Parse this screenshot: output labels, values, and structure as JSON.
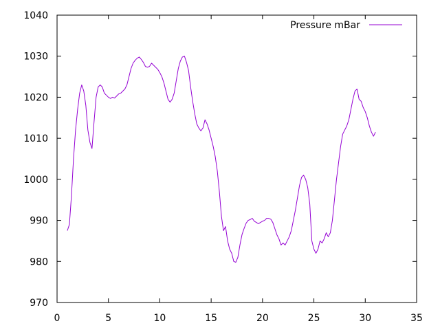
{
  "chart_data": {
    "type": "line",
    "title": "",
    "xlabel": "",
    "ylabel": "",
    "xlim": [
      0,
      35
    ],
    "ylim": [
      970,
      1040
    ],
    "x_ticks": [
      0,
      5,
      10,
      15,
      20,
      25,
      30,
      35
    ],
    "y_ticks": [
      970,
      980,
      990,
      1000,
      1010,
      1020,
      1030,
      1040
    ],
    "grid": false,
    "legend_position": "top-right",
    "series": [
      {
        "name": "Pressure mBar",
        "color": "#9400d3",
        "points": [
          [
            1.0,
            987.5
          ],
          [
            1.2,
            989.0
          ],
          [
            1.4,
            996.0
          ],
          [
            1.6,
            1005.0
          ],
          [
            1.8,
            1012.0
          ],
          [
            2.0,
            1017.0
          ],
          [
            2.2,
            1021.0
          ],
          [
            2.4,
            1023.0
          ],
          [
            2.6,
            1021.5
          ],
          [
            2.8,
            1018.0
          ],
          [
            3.0,
            1012.0
          ],
          [
            3.2,
            1009.0
          ],
          [
            3.4,
            1007.5
          ],
          [
            3.6,
            1014.0
          ],
          [
            3.8,
            1020.0
          ],
          [
            4.0,
            1022.5
          ],
          [
            4.2,
            1023.0
          ],
          [
            4.4,
            1022.5
          ],
          [
            4.6,
            1021.0
          ],
          [
            4.8,
            1020.5
          ],
          [
            5.0,
            1020.0
          ],
          [
            5.2,
            1019.7
          ],
          [
            5.4,
            1020.0
          ],
          [
            5.6,
            1019.8
          ],
          [
            5.8,
            1020.3
          ],
          [
            6.0,
            1020.8
          ],
          [
            6.2,
            1021.0
          ],
          [
            6.4,
            1021.5
          ],
          [
            6.6,
            1022.0
          ],
          [
            6.8,
            1023.0
          ],
          [
            7.0,
            1025.0
          ],
          [
            7.2,
            1027.0
          ],
          [
            7.4,
            1028.3
          ],
          [
            7.6,
            1029.0
          ],
          [
            7.8,
            1029.5
          ],
          [
            8.0,
            1029.8
          ],
          [
            8.2,
            1029.2
          ],
          [
            8.4,
            1028.5
          ],
          [
            8.6,
            1027.5
          ],
          [
            8.8,
            1027.3
          ],
          [
            9.0,
            1027.5
          ],
          [
            9.2,
            1028.3
          ],
          [
            9.4,
            1027.8
          ],
          [
            9.6,
            1027.3
          ],
          [
            9.8,
            1026.8
          ],
          [
            10.0,
            1026.0
          ],
          [
            10.2,
            1025.0
          ],
          [
            10.4,
            1023.5
          ],
          [
            10.6,
            1021.5
          ],
          [
            10.8,
            1019.5
          ],
          [
            11.0,
            1018.8
          ],
          [
            11.2,
            1019.5
          ],
          [
            11.4,
            1021.0
          ],
          [
            11.6,
            1024.0
          ],
          [
            11.8,
            1027.0
          ],
          [
            12.0,
            1028.8
          ],
          [
            12.2,
            1029.8
          ],
          [
            12.4,
            1030.0
          ],
          [
            12.6,
            1028.5
          ],
          [
            12.8,
            1026.5
          ],
          [
            13.0,
            1022.5
          ],
          [
            13.2,
            1019.0
          ],
          [
            13.4,
            1016.0
          ],
          [
            13.6,
            1013.5
          ],
          [
            13.8,
            1012.5
          ],
          [
            14.0,
            1011.8
          ],
          [
            14.2,
            1012.5
          ],
          [
            14.4,
            1014.5
          ],
          [
            14.6,
            1013.5
          ],
          [
            14.8,
            1012.0
          ],
          [
            15.0,
            1010.0
          ],
          [
            15.2,
            1008.0
          ],
          [
            15.4,
            1005.5
          ],
          [
            15.6,
            1002.0
          ],
          [
            15.8,
            997.0
          ],
          [
            16.0,
            991.0
          ],
          [
            16.2,
            987.5
          ],
          [
            16.4,
            988.5
          ],
          [
            16.6,
            985.0
          ],
          [
            16.8,
            983.0
          ],
          [
            17.0,
            982.0
          ],
          [
            17.2,
            980.0
          ],
          [
            17.4,
            979.8
          ],
          [
            17.6,
            981.0
          ],
          [
            17.8,
            984.0
          ],
          [
            18.0,
            986.5
          ],
          [
            18.2,
            988.0
          ],
          [
            18.4,
            989.3
          ],
          [
            18.6,
            990.0
          ],
          [
            18.8,
            990.2
          ],
          [
            19.0,
            990.5
          ],
          [
            19.2,
            989.8
          ],
          [
            19.4,
            989.5
          ],
          [
            19.6,
            989.2
          ],
          [
            19.8,
            989.5
          ],
          [
            20.0,
            989.8
          ],
          [
            20.2,
            990.0
          ],
          [
            20.4,
            990.5
          ],
          [
            20.6,
            990.5
          ],
          [
            20.8,
            990.3
          ],
          [
            21.0,
            989.5
          ],
          [
            21.2,
            988.0
          ],
          [
            21.4,
            986.5
          ],
          [
            21.6,
            985.5
          ],
          [
            21.8,
            984.0
          ],
          [
            22.0,
            984.5
          ],
          [
            22.2,
            984.0
          ],
          [
            22.4,
            985.0
          ],
          [
            22.6,
            986.0
          ],
          [
            22.8,
            987.5
          ],
          [
            23.0,
            990.0
          ],
          [
            23.2,
            992.5
          ],
          [
            23.4,
            995.5
          ],
          [
            23.6,
            998.5
          ],
          [
            23.8,
            1000.5
          ],
          [
            24.0,
            1001.0
          ],
          [
            24.2,
            1000.0
          ],
          [
            24.4,
            998.0
          ],
          [
            24.6,
            994.0
          ],
          [
            24.8,
            985.0
          ],
          [
            25.0,
            983.0
          ],
          [
            25.2,
            982.0
          ],
          [
            25.4,
            983.0
          ],
          [
            25.6,
            985.0
          ],
          [
            25.8,
            984.5
          ],
          [
            26.0,
            985.5
          ],
          [
            26.2,
            987.0
          ],
          [
            26.4,
            986.0
          ],
          [
            26.6,
            987.0
          ],
          [
            26.8,
            990.0
          ],
          [
            27.0,
            995.0
          ],
          [
            27.2,
            1000.0
          ],
          [
            27.4,
            1004.0
          ],
          [
            27.6,
            1008.0
          ],
          [
            27.8,
            1011.0
          ],
          [
            28.0,
            1012.0
          ],
          [
            28.2,
            1013.0
          ],
          [
            28.4,
            1014.5
          ],
          [
            28.6,
            1017.0
          ],
          [
            28.8,
            1019.5
          ],
          [
            29.0,
            1021.5
          ],
          [
            29.2,
            1022.0
          ],
          [
            29.4,
            1019.5
          ],
          [
            29.6,
            1019.0
          ],
          [
            29.8,
            1017.5
          ],
          [
            30.0,
            1016.5
          ],
          [
            30.2,
            1015.0
          ],
          [
            30.4,
            1013.0
          ],
          [
            30.6,
            1011.5
          ],
          [
            30.8,
            1010.5
          ],
          [
            31.0,
            1011.5
          ]
        ]
      }
    ]
  }
}
